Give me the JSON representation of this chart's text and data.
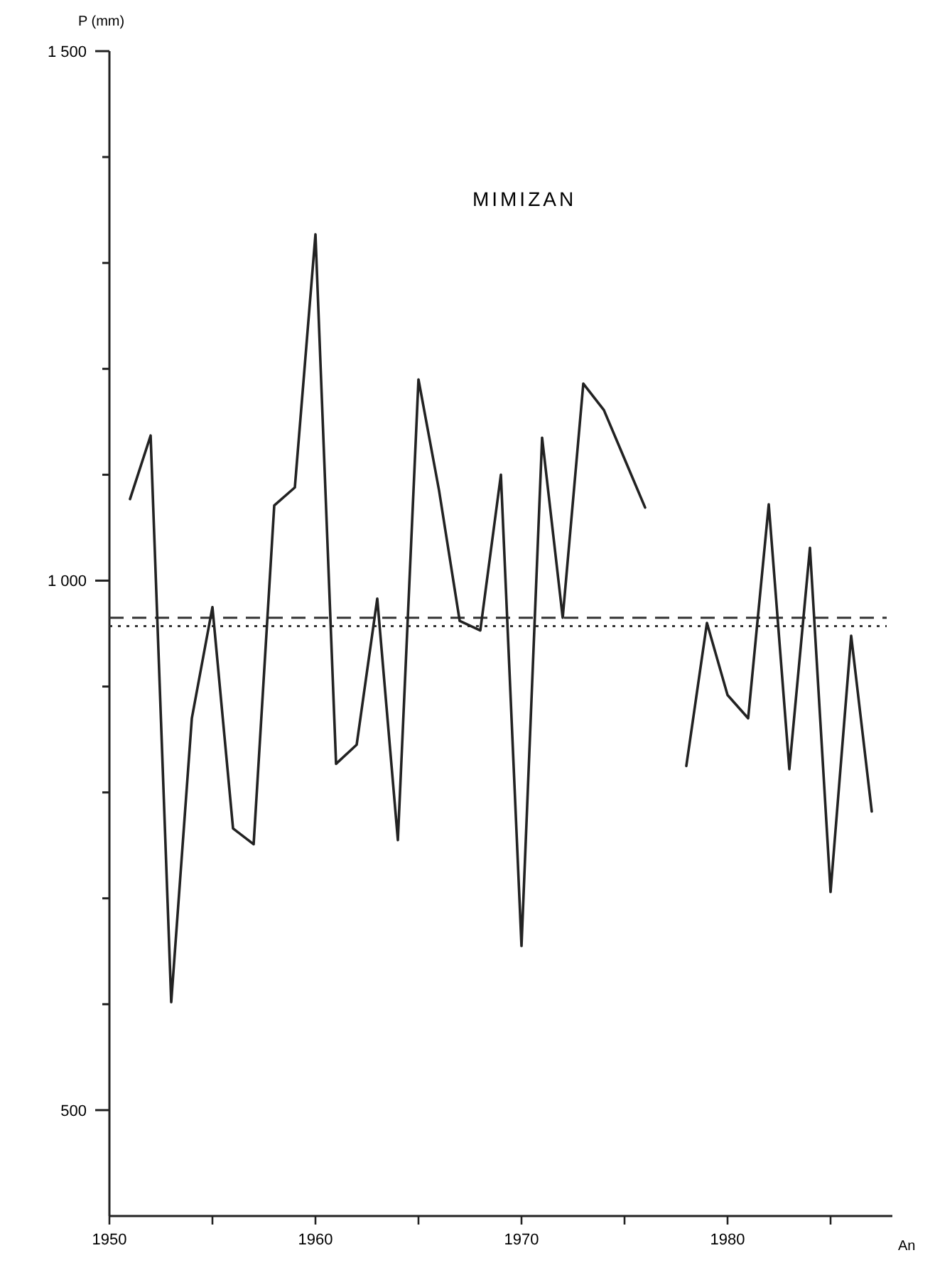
{
  "chart_data": {
    "type": "line",
    "title": "MIMIZAN",
    "xlabel": "An",
    "ylabel": "P (mm)",
    "x": [
      1951,
      1952,
      1953,
      1954,
      1955,
      1956,
      1957,
      1958,
      1959,
      1960,
      1961,
      1962,
      1963,
      1964,
      1965,
      1966,
      1967,
      1968,
      1969,
      1970,
      1971,
      1972,
      1973,
      1974,
      1975,
      1976,
      1977,
      1978,
      1979,
      1980,
      1981,
      1982,
      1983,
      1984,
      1985,
      1986,
      1987
    ],
    "series": [
      {
        "color": "#222222",
        "values": [
          1077,
          1137,
          602,
          870,
          975,
          766,
          751,
          1071,
          1088,
          1327,
          827,
          845,
          983,
          755,
          1190,
          1085,
          962,
          953,
          1100,
          655,
          1135,
          965,
          1186,
          1161,
          1115,
          1069,
          null,
          825,
          960,
          892,
          870,
          1072,
          822,
          1031,
          706,
          948,
          782
        ]
      }
    ],
    "xlim": [
      1950,
      1988
    ],
    "xticks": [
      1950,
      {
        "value": 1955,
        "label": null
      },
      1960,
      {
        "value": 1965,
        "label": null
      },
      1970,
      {
        "value": 1975,
        "label": null
      },
      1980,
      {
        "value": 1985,
        "label": null
      }
    ],
    "ylim": [
      400,
      1500
    ],
    "yticks": [
      {
        "value": 500,
        "label": "500"
      },
      {
        "value": 600,
        "label": null
      },
      {
        "value": 700,
        "label": null
      },
      {
        "value": 800,
        "label": null
      },
      {
        "value": 900,
        "label": null
      },
      {
        "value": 1000,
        "label": "1 000"
      },
      {
        "value": 1100,
        "label": null
      },
      {
        "value": 1200,
        "label": null
      },
      {
        "value": 1300,
        "label": null
      },
      {
        "value": 1400,
        "label": null
      },
      {
        "value": 1500,
        "label": "1 500"
      }
    ],
    "ref_lines": [
      {
        "axis": "y",
        "value": 965,
        "line_style": "dashed",
        "color": "#333333"
      },
      {
        "axis": "y",
        "value": 957,
        "line_style": "dotted",
        "color": "#333333"
      }
    ],
    "marker": "none",
    "line_style": "solid"
  }
}
